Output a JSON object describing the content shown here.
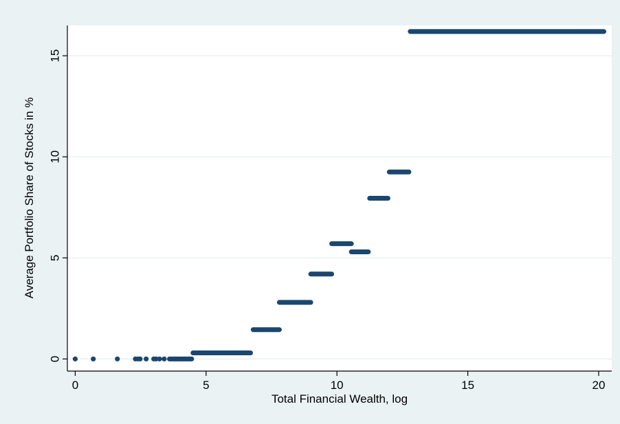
{
  "chart_data": {
    "type": "scatter",
    "title": "",
    "xlabel": "Total Financial Wealth, log",
    "ylabel": "Average Portfolio Share of Stocks in %",
    "xlim": [
      -0.3,
      20.5
    ],
    "ylim": [
      -0.6,
      16.5
    ],
    "x_ticks": [
      0,
      5,
      10,
      15,
      20
    ],
    "x_tick_labels": [
      "0",
      "5",
      "10",
      "15",
      "20"
    ],
    "y_ticks": [
      0,
      5,
      10,
      15
    ],
    "y_tick_labels": [
      "0",
      "5",
      "10",
      "15"
    ],
    "grid": "horizontal",
    "legend": "none",
    "colors": {
      "outer_background": "#eaf2f3",
      "plot_background": "#ffffff",
      "grid": "#e8eeee",
      "marker": "#1a476f"
    },
    "points": [
      {
        "x": 0.0,
        "y": 0.0
      },
      {
        "x": 0.69,
        "y": 0.0
      },
      {
        "x": 1.61,
        "y": 0.0
      },
      {
        "x": 2.3,
        "y": 0.0
      },
      {
        "x": 2.4,
        "y": 0.0
      },
      {
        "x": 2.48,
        "y": 0.0
      },
      {
        "x": 2.71,
        "y": 0.0
      },
      {
        "x": 3.0,
        "y": 0.0
      },
      {
        "x": 3.09,
        "y": 0.0
      },
      {
        "x": 3.22,
        "y": 0.0
      },
      {
        "x": 3.4,
        "y": 0.0
      }
    ],
    "segments": [
      {
        "x_start": 3.6,
        "x_end": 4.45,
        "y": 0.0
      },
      {
        "x_start": 4.5,
        "x_end": 6.7,
        "y": 0.3
      },
      {
        "x_start": 6.8,
        "x_end": 7.8,
        "y": 1.45
      },
      {
        "x_start": 7.8,
        "x_end": 9.0,
        "y": 2.8
      },
      {
        "x_start": 9.0,
        "x_end": 9.8,
        "y": 4.2
      },
      {
        "x_start": 9.8,
        "x_end": 10.55,
        "y": 5.7
      },
      {
        "x_start": 10.55,
        "x_end": 11.2,
        "y": 5.3
      },
      {
        "x_start": 11.25,
        "x_end": 11.95,
        "y": 7.95
      },
      {
        "x_start": 12.0,
        "x_end": 12.75,
        "y": 9.25
      },
      {
        "x_start": 12.8,
        "x_end": 20.2,
        "y": 16.2
      }
    ]
  }
}
